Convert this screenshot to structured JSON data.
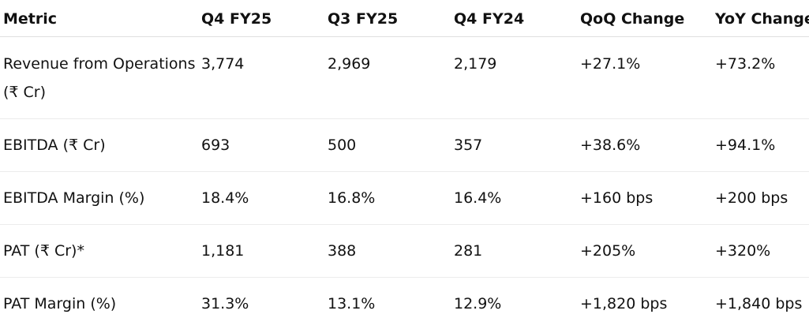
{
  "table": {
    "headers": [
      "Metric",
      "Q4 FY25",
      "Q3 FY25",
      "Q4 FY24",
      "QoQ Change",
      "YoY Change"
    ],
    "rows": [
      [
        "Revenue from Operations (₹ Cr)",
        "3,774",
        "2,969",
        "2,179",
        "+27.1%",
        "+73.2%"
      ],
      [
        "EBITDA (₹ Cr)",
        "693",
        "500",
        "357",
        "+38.6%",
        "+94.1%"
      ],
      [
        "EBITDA Margin (%)",
        "18.4%",
        "16.8%",
        "16.4%",
        "+160 bps",
        "+200 bps"
      ],
      [
        "PAT (₹ Cr)*",
        "1,181",
        "388",
        "281",
        "+205%",
        "+320%"
      ],
      [
        "PAT Margin (%)",
        "31.3%",
        "13.1%",
        "12.9%",
        "+1,820 bps",
        "+1,840 bps"
      ]
    ]
  }
}
